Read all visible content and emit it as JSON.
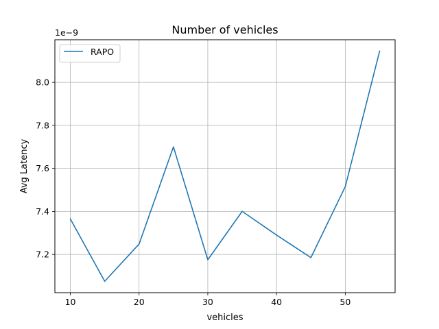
{
  "chart_data": {
    "type": "line",
    "title": "Number of vehicles",
    "xlabel": "vehicles",
    "ylabel": "Avg Latency",
    "offset_label": "1e−9",
    "x": [
      10,
      15,
      20,
      25,
      30,
      35,
      40,
      45,
      50,
      55
    ],
    "series": [
      {
        "name": "RAPO",
        "color": "#1f77b4",
        "values": [
          7.365,
          7.075,
          7.248,
          7.7,
          7.175,
          7.4,
          7.29,
          7.185,
          7.515,
          8.145
        ]
      }
    ],
    "xlim": [
      7.75,
      57.25
    ],
    "ylim": [
      7.022,
      8.198
    ],
    "xticks": [
      10,
      20,
      30,
      40,
      50
    ],
    "yticks": [
      7.2,
      7.4,
      7.6,
      7.8,
      8.0
    ],
    "ytick_labels": [
      "7.2",
      "7.4",
      "7.6",
      "7.8",
      "8.0"
    ],
    "grid": true,
    "legend_position": "upper left"
  }
}
